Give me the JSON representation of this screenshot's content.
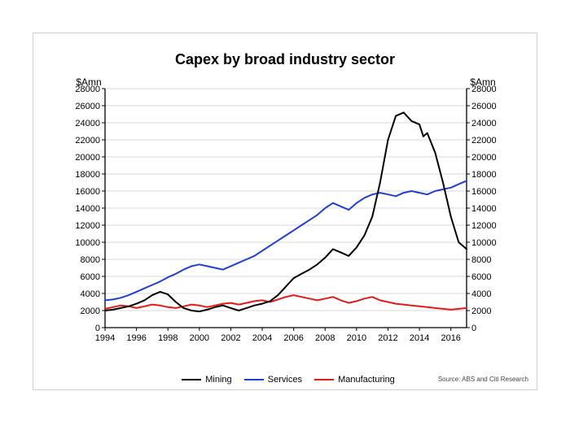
{
  "chart": {
    "type": "line",
    "title": "Capex by broad industry sector",
    "title_fontsize": 18,
    "title_fontweight": 700,
    "y_axis_left_label": "$Amn",
    "y_axis_right_label": "$Amn",
    "axis_label_fontsize": 12,
    "tick_label_fontsize": 11,
    "axis_color": "#000000",
    "grid_color": "#d9d9d9",
    "grid_on": true,
    "background_color": "#ffffff",
    "frame_border_color": "#d0d0d0",
    "line_width": 2,
    "x": {
      "min": 1994,
      "max": 2017,
      "tick_start": 1994,
      "tick_step": 2,
      "tick_end": 2016
    },
    "y": {
      "min": 0,
      "max": 28000,
      "tick_start": 0,
      "tick_step": 2000,
      "tick_end": 28000
    },
    "legend": {
      "position": "bottom-center",
      "items": [
        {
          "label": "Mining",
          "key": "mining"
        },
        {
          "label": "Services",
          "key": "services"
        },
        {
          "label": "Manufacturing",
          "key": "manufacturing"
        }
      ]
    },
    "source_text": "Source: ABS and Citi Research",
    "series": {
      "mining": {
        "color": "#000000",
        "points": [
          [
            1994,
            2000
          ],
          [
            1994.5,
            2100
          ],
          [
            1995,
            2300
          ],
          [
            1995.5,
            2500
          ],
          [
            1996,
            2800
          ],
          [
            1996.5,
            3200
          ],
          [
            1997,
            3800
          ],
          [
            1997.5,
            4200
          ],
          [
            1998,
            3900
          ],
          [
            1998.5,
            3000
          ],
          [
            1999,
            2300
          ],
          [
            1999.5,
            2000
          ],
          [
            2000,
            1900
          ],
          [
            2000.5,
            2100
          ],
          [
            2001,
            2400
          ],
          [
            2001.5,
            2600
          ],
          [
            2002,
            2300
          ],
          [
            2002.5,
            2000
          ],
          [
            2003,
            2300
          ],
          [
            2003.5,
            2600
          ],
          [
            2004,
            2800
          ],
          [
            2004.5,
            3100
          ],
          [
            2005,
            3800
          ],
          [
            2005.5,
            4800
          ],
          [
            2006,
            5800
          ],
          [
            2006.5,
            6300
          ],
          [
            2007,
            6800
          ],
          [
            2007.5,
            7400
          ],
          [
            2008,
            8200
          ],
          [
            2008.5,
            9200
          ],
          [
            2009,
            8800
          ],
          [
            2009.5,
            8400
          ],
          [
            2010,
            9400
          ],
          [
            2010.5,
            10800
          ],
          [
            2011,
            13000
          ],
          [
            2011.5,
            17000
          ],
          [
            2012,
            22000
          ],
          [
            2012.5,
            24800
          ],
          [
            2013,
            25200
          ],
          [
            2013.5,
            24200
          ],
          [
            2014,
            23800
          ],
          [
            2014.25,
            22400
          ],
          [
            2014.5,
            22800
          ],
          [
            2015,
            20500
          ],
          [
            2015.5,
            17000
          ],
          [
            2016,
            13000
          ],
          [
            2016.5,
            10000
          ],
          [
            2017,
            9200
          ]
        ]
      },
      "services": {
        "color": "#1f3fd6",
        "points": [
          [
            1994,
            3200
          ],
          [
            1994.5,
            3300
          ],
          [
            1995,
            3500
          ],
          [
            1995.5,
            3800
          ],
          [
            1996,
            4200
          ],
          [
            1996.5,
            4600
          ],
          [
            1997,
            5000
          ],
          [
            1997.5,
            5400
          ],
          [
            1998,
            5900
          ],
          [
            1998.5,
            6300
          ],
          [
            1999,
            6800
          ],
          [
            1999.5,
            7200
          ],
          [
            2000,
            7400
          ],
          [
            2000.5,
            7200
          ],
          [
            2001,
            7000
          ],
          [
            2001.5,
            6800
          ],
          [
            2002,
            7200
          ],
          [
            2002.5,
            7600
          ],
          [
            2003,
            8000
          ],
          [
            2003.5,
            8400
          ],
          [
            2004,
            9000
          ],
          [
            2004.5,
            9600
          ],
          [
            2005,
            10200
          ],
          [
            2005.5,
            10800
          ],
          [
            2006,
            11400
          ],
          [
            2006.5,
            12000
          ],
          [
            2007,
            12600
          ],
          [
            2007.5,
            13200
          ],
          [
            2008,
            14000
          ],
          [
            2008.5,
            14600
          ],
          [
            2009,
            14200
          ],
          [
            2009.5,
            13800
          ],
          [
            2010,
            14600
          ],
          [
            2010.5,
            15200
          ],
          [
            2011,
            15600
          ],
          [
            2011.5,
            15800
          ],
          [
            2012,
            15600
          ],
          [
            2012.5,
            15400
          ],
          [
            2013,
            15800
          ],
          [
            2013.5,
            16000
          ],
          [
            2014,
            15800
          ],
          [
            2014.5,
            15600
          ],
          [
            2015,
            16000
          ],
          [
            2015.5,
            16200
          ],
          [
            2016,
            16400
          ],
          [
            2016.5,
            16800
          ],
          [
            2017,
            17200
          ]
        ]
      },
      "manufacturing": {
        "color": "#e61919",
        "points": [
          [
            1994,
            2200
          ],
          [
            1994.5,
            2400
          ],
          [
            1995,
            2600
          ],
          [
            1995.5,
            2500
          ],
          [
            1996,
            2300
          ],
          [
            1996.5,
            2500
          ],
          [
            1997,
            2700
          ],
          [
            1997.5,
            2600
          ],
          [
            1998,
            2400
          ],
          [
            1998.5,
            2300
          ],
          [
            1999,
            2500
          ],
          [
            1999.5,
            2700
          ],
          [
            2000,
            2600
          ],
          [
            2000.5,
            2400
          ],
          [
            2001,
            2600
          ],
          [
            2001.5,
            2800
          ],
          [
            2002,
            2900
          ],
          [
            2002.5,
            2700
          ],
          [
            2003,
            2900
          ],
          [
            2003.5,
            3100
          ],
          [
            2004,
            3200
          ],
          [
            2004.5,
            3000
          ],
          [
            2005,
            3300
          ],
          [
            2005.5,
            3600
          ],
          [
            2006,
            3800
          ],
          [
            2006.5,
            3600
          ],
          [
            2007,
            3400
          ],
          [
            2007.5,
            3200
          ],
          [
            2008,
            3400
          ],
          [
            2008.5,
            3600
          ],
          [
            2009,
            3200
          ],
          [
            2009.5,
            2900
          ],
          [
            2010,
            3100
          ],
          [
            2010.5,
            3400
          ],
          [
            2011,
            3600
          ],
          [
            2011.5,
            3200
          ],
          [
            2012,
            3000
          ],
          [
            2012.5,
            2800
          ],
          [
            2013,
            2700
          ],
          [
            2013.5,
            2600
          ],
          [
            2014,
            2500
          ],
          [
            2014.5,
            2400
          ],
          [
            2015,
            2300
          ],
          [
            2015.5,
            2200
          ],
          [
            2016,
            2100
          ],
          [
            2016.5,
            2200
          ],
          [
            2017,
            2300
          ]
        ]
      }
    }
  }
}
